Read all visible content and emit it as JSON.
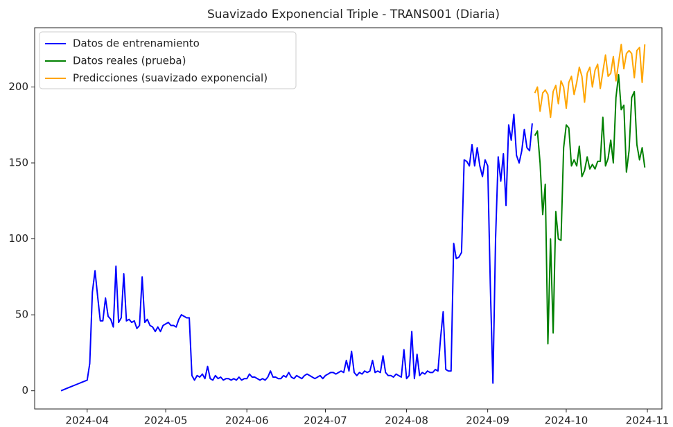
{
  "chart_data": {
    "type": "line",
    "title": "Suavizado Exponencial Triple - TRANS001 (Diaria)",
    "categories": [
      null,
      null,
      null,
      null,
      null,
      null,
      null,
      null,
      null,
      null,
      "2024-04",
      null,
      null,
      null,
      null,
      null,
      null,
      null,
      null,
      null,
      null,
      null,
      null,
      null,
      null,
      null,
      null,
      null,
      null,
      null,
      null,
      null,
      null,
      null,
      null,
      null,
      null,
      null,
      null,
      null,
      "2024-05",
      null,
      null,
      null,
      null,
      null,
      null,
      null,
      null,
      null,
      null,
      null,
      null,
      null,
      null,
      null,
      null,
      null,
      null,
      null,
      null,
      null,
      null,
      null,
      null,
      null,
      null,
      null,
      null,
      null,
      null,
      "2024-06",
      null,
      null,
      null,
      null,
      null,
      null,
      null,
      null,
      null,
      null,
      null,
      null,
      null,
      null,
      null,
      null,
      null,
      null,
      null,
      null,
      null,
      null,
      null,
      null,
      null,
      null,
      null,
      null,
      null,
      "2024-07",
      null,
      null,
      null,
      null,
      null,
      null,
      null,
      null,
      null,
      null,
      null,
      null,
      null,
      null,
      null,
      null,
      null,
      null,
      null,
      null,
      null,
      null,
      null,
      null,
      null,
      null,
      null,
      null,
      null,
      null,
      "2024-08",
      null,
      null,
      null,
      null,
      null,
      null,
      null,
      null,
      null,
      null,
      null,
      null,
      null,
      null,
      null,
      null,
      null,
      null,
      null,
      null,
      null,
      null,
      null,
      null,
      null,
      null,
      null,
      null,
      null,
      null,
      "2024-09",
      null,
      null,
      null,
      null,
      null,
      null,
      null,
      null,
      null,
      null,
      null,
      null,
      null,
      null,
      null,
      null,
      null,
      null,
      null,
      null,
      null,
      null,
      null,
      null,
      null,
      null,
      null,
      null,
      null,
      "2024-10",
      null,
      null,
      null,
      null,
      null,
      null,
      null,
      null,
      null,
      null,
      null,
      null,
      null,
      null,
      null,
      null,
      null,
      null,
      null,
      null,
      null,
      null,
      null,
      null,
      null,
      null,
      null,
      null,
      null,
      null,
      "2024-11"
    ],
    "series": [
      {
        "name": "Datos de entrenamiento",
        "color": "#0000ff",
        "values": [
          0,
          0.7,
          1.4,
          2.1,
          2.8,
          3.5,
          4.2,
          4.9,
          5.6,
          6.3,
          7,
          18,
          65,
          79,
          62,
          46,
          46,
          61,
          49,
          47,
          42,
          82,
          45,
          48,
          77,
          46,
          47,
          45,
          46,
          41,
          43,
          75,
          45,
          47,
          43,
          42,
          39,
          42,
          39,
          43,
          44,
          45,
          43,
          43,
          42,
          47,
          50,
          49,
          48,
          48,
          10,
          7,
          10,
          9,
          11,
          8,
          16,
          8,
          7,
          10,
          8,
          9,
          7,
          8,
          8,
          7,
          8,
          7,
          9,
          7,
          8,
          8,
          11,
          9,
          9,
          8,
          7,
          8,
          7,
          9,
          13,
          9,
          9,
          8,
          8,
          10,
          9,
          12,
          9,
          8,
          10,
          9,
          8,
          10,
          11,
          10,
          9,
          8,
          9,
          10,
          8,
          10,
          11,
          12,
          12,
          11,
          12,
          13,
          12,
          20,
          13,
          26,
          12,
          10,
          12,
          11,
          13,
          12,
          13,
          20,
          12,
          13,
          12,
          23,
          12,
          10,
          10,
          9,
          11,
          10,
          9,
          27,
          8,
          10,
          39,
          8,
          24,
          10,
          12,
          11,
          13,
          12,
          12,
          14,
          13,
          35,
          52,
          14,
          13,
          13,
          97,
          87,
          88,
          91,
          152,
          151,
          148,
          162,
          148,
          160,
          148,
          141,
          152,
          148,
          70,
          5,
          100,
          154,
          138,
          156,
          122,
          175,
          165,
          182,
          155,
          150,
          158,
          172,
          160,
          158,
          176,
          null,
          null,
          null,
          null,
          null,
          null,
          null,
          null,
          null,
          null,
          null,
          null,
          null,
          null,
          null,
          null,
          null,
          null,
          null,
          null,
          null,
          null,
          null,
          null,
          null,
          null,
          null,
          null,
          null,
          null,
          null,
          null,
          null,
          null,
          null,
          null,
          null,
          null,
          null,
          null,
          null,
          null,
          null,
          null
        ]
      },
      {
        "name": "Datos reales (prueba)",
        "color": "#008000",
        "values": [
          null,
          null,
          null,
          null,
          null,
          null,
          null,
          null,
          null,
          null,
          null,
          null,
          null,
          null,
          null,
          null,
          null,
          null,
          null,
          null,
          null,
          null,
          null,
          null,
          null,
          null,
          null,
          null,
          null,
          null,
          null,
          null,
          null,
          null,
          null,
          null,
          null,
          null,
          null,
          null,
          null,
          null,
          null,
          null,
          null,
          null,
          null,
          null,
          null,
          null,
          null,
          null,
          null,
          null,
          null,
          null,
          null,
          null,
          null,
          null,
          null,
          null,
          null,
          null,
          null,
          null,
          null,
          null,
          null,
          null,
          null,
          null,
          null,
          null,
          null,
          null,
          null,
          null,
          null,
          null,
          null,
          null,
          null,
          null,
          null,
          null,
          null,
          null,
          null,
          null,
          null,
          null,
          null,
          null,
          null,
          null,
          null,
          null,
          null,
          null,
          null,
          null,
          null,
          null,
          null,
          null,
          null,
          null,
          null,
          null,
          null,
          null,
          null,
          null,
          null,
          null,
          null,
          null,
          null,
          null,
          null,
          null,
          null,
          null,
          null,
          null,
          null,
          null,
          null,
          null,
          null,
          null,
          null,
          null,
          null,
          null,
          null,
          null,
          null,
          null,
          null,
          null,
          null,
          null,
          null,
          null,
          null,
          null,
          null,
          null,
          null,
          null,
          null,
          null,
          null,
          null,
          null,
          null,
          null,
          null,
          null,
          null,
          null,
          null,
          null,
          null,
          null,
          null,
          null,
          null,
          null,
          null,
          null,
          null,
          null,
          null,
          null,
          null,
          null,
          null,
          null,
          168,
          171,
          150,
          116,
          136,
          31,
          100,
          38,
          118,
          100,
          99,
          160,
          175,
          173,
          148,
          152,
          148,
          161,
          141,
          145,
          154,
          146,
          149,
          146,
          151,
          151,
          180,
          148,
          153,
          165,
          150,
          193,
          208,
          185,
          188,
          144,
          158,
          193,
          197,
          162,
          152,
          160,
          147,
          null
        ]
      },
      {
        "name": "Predicciones (suavizado exponencial)",
        "color": "#ffa500",
        "values": [
          null,
          null,
          null,
          null,
          null,
          null,
          null,
          null,
          null,
          null,
          null,
          null,
          null,
          null,
          null,
          null,
          null,
          null,
          null,
          null,
          null,
          null,
          null,
          null,
          null,
          null,
          null,
          null,
          null,
          null,
          null,
          null,
          null,
          null,
          null,
          null,
          null,
          null,
          null,
          null,
          null,
          null,
          null,
          null,
          null,
          null,
          null,
          null,
          null,
          null,
          null,
          null,
          null,
          null,
          null,
          null,
          null,
          null,
          null,
          null,
          null,
          null,
          null,
          null,
          null,
          null,
          null,
          null,
          null,
          null,
          null,
          null,
          null,
          null,
          null,
          null,
          null,
          null,
          null,
          null,
          null,
          null,
          null,
          null,
          null,
          null,
          null,
          null,
          null,
          null,
          null,
          null,
          null,
          null,
          null,
          null,
          null,
          null,
          null,
          null,
          null,
          null,
          null,
          null,
          null,
          null,
          null,
          null,
          null,
          null,
          null,
          null,
          null,
          null,
          null,
          null,
          null,
          null,
          null,
          null,
          null,
          null,
          null,
          null,
          null,
          null,
          null,
          null,
          null,
          null,
          null,
          null,
          null,
          null,
          null,
          null,
          null,
          null,
          null,
          null,
          null,
          null,
          null,
          null,
          null,
          null,
          null,
          null,
          null,
          null,
          null,
          null,
          null,
          null,
          null,
          null,
          null,
          null,
          null,
          null,
          null,
          null,
          null,
          null,
          null,
          null,
          null,
          null,
          null,
          null,
          null,
          null,
          null,
          null,
          null,
          null,
          null,
          null,
          null,
          null,
          null,
          196,
          200,
          184,
          196,
          198,
          195,
          180,
          197,
          201,
          189,
          204,
          200,
          186,
          203,
          207,
          195,
          203,
          213,
          207,
          190,
          209,
          213,
          200,
          211,
          215,
          199,
          210,
          221,
          207,
          209,
          220,
          204,
          216,
          228,
          212,
          222,
          224,
          222,
          206,
          224,
          226,
          203,
          228,
          null
        ]
      }
    ],
    "ylim": [
      -12,
      239
    ],
    "yticks": [
      0,
      50,
      100,
      150,
      200
    ],
    "grid": false,
    "legend": "upper left"
  }
}
